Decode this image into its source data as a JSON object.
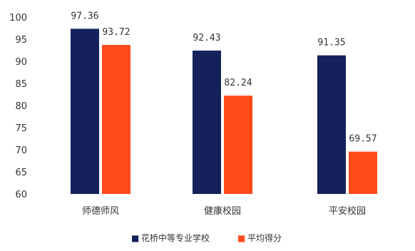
{
  "chart_data": {
    "type": "bar",
    "categories": [
      "师德师风",
      "健康校园",
      "平安校园"
    ],
    "series": [
      {
        "name": "花桥中等专业学校",
        "values": [
          97.36,
          92.43,
          91.35
        ],
        "color": "#15215a"
      },
      {
        "name": "平均得分",
        "values": [
          93.72,
          82.24,
          69.57
        ],
        "color": "#ff4a1c"
      }
    ],
    "data_labels": [
      [
        "97.36",
        "92.43",
        "91.35"
      ],
      [
        "93.72",
        "82.24",
        "69.57"
      ]
    ],
    "ylim": [
      60,
      100
    ],
    "yticks": [
      60,
      65,
      70,
      75,
      80,
      85,
      90,
      95,
      100
    ],
    "ytick_labels": [
      "60",
      "65",
      "70",
      "75",
      "80",
      "85",
      "90",
      "95",
      "100"
    ],
    "grid": false,
    "legend_position": "bottom",
    "legend_markers": [
      "■",
      "■"
    ],
    "title": "",
    "xlabel": "",
    "ylabel": ""
  }
}
